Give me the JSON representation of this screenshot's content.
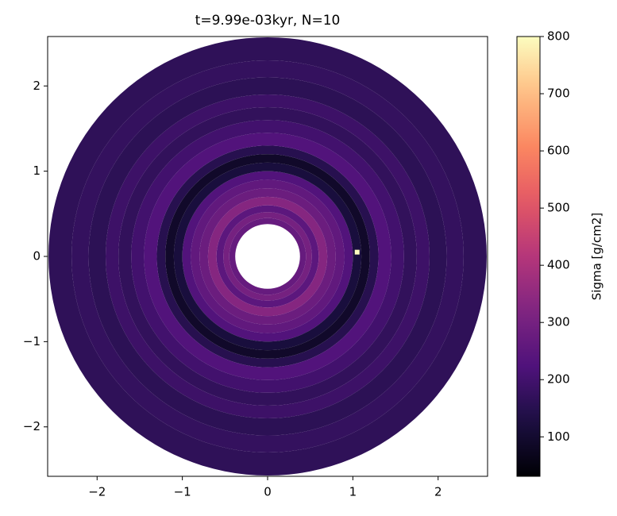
{
  "chart_data": {
    "type": "polar-heatmap",
    "title": "t=9.99e-03kyr, N=10",
    "xlim": [
      -2.58,
      2.58
    ],
    "ylim": [
      -2.58,
      2.58
    ],
    "xticks": [
      {
        "value": -2,
        "label": "−2"
      },
      {
        "value": -1,
        "label": "−1"
      },
      0,
      1,
      2
    ],
    "yticks": [
      {
        "value": -2,
        "label": "−2"
      },
      {
        "value": -1,
        "label": "−1"
      },
      0,
      1,
      2
    ],
    "r_edges": [
      0.38,
      0.45,
      0.52,
      0.6,
      0.7,
      0.8,
      0.9,
      1.0,
      1.1,
      1.2,
      1.3,
      1.45,
      1.6,
      1.75,
      1.9,
      2.1,
      2.3,
      2.57
    ],
    "values": [
      270,
      300,
      250,
      330,
      280,
      260,
      230,
      120,
      90,
      150,
      230,
      200,
      170,
      190,
      160,
      175,
      165
    ],
    "planet": {
      "x": 1.05,
      "y": 0.05,
      "value": 800
    },
    "colormap": "magma",
    "clim": [
      31,
      800
    ],
    "colorbar_label": "Sigma [g/cm2]",
    "colorbar_ticks": [
      100,
      200,
      300,
      400,
      500,
      600,
      700,
      800
    ]
  }
}
